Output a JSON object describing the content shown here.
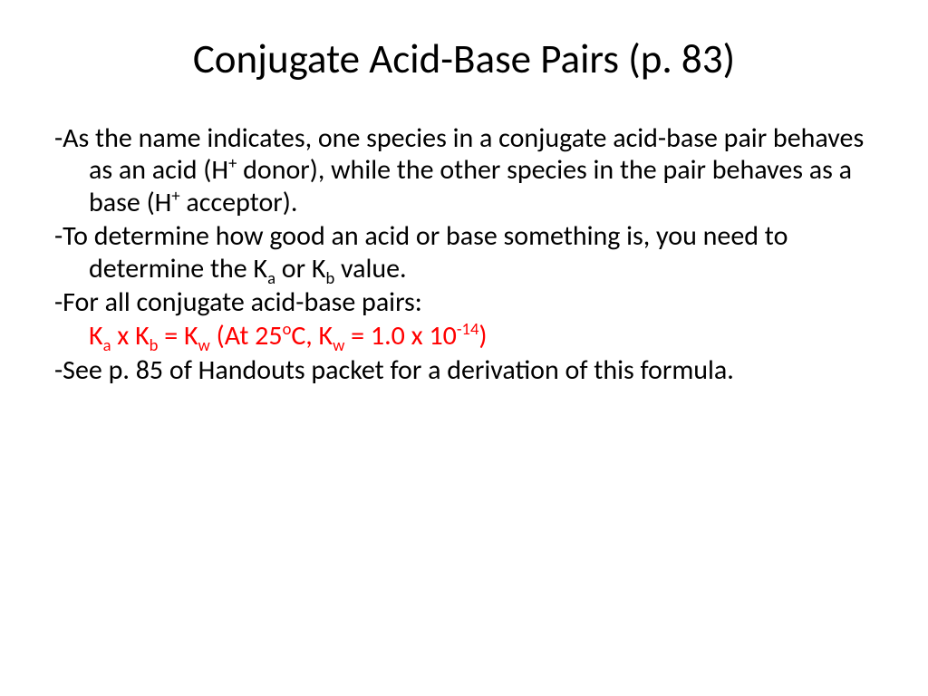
{
  "slide": {
    "title": "Conjugate Acid-Base Pairs (p. 83)",
    "background_color": "#ffffff",
    "title_color": "#000000",
    "title_fontsize": 45,
    "body_color": "#000000",
    "body_fontsize": 30,
    "highlight_color": "#ff0000",
    "font_family": "Calibri",
    "paragraphs": [
      {
        "type": "bullet",
        "segments": [
          {
            "t": "-As the name indicates, one species in a conjugate acid-base pair behaves as an acid (H"
          },
          {
            "t": "+",
            "sup": true
          },
          {
            "t": " donor), while the other species in the pair behaves as a base (H"
          },
          {
            "t": "+",
            "sup": true
          },
          {
            "t": " acceptor)."
          }
        ]
      },
      {
        "type": "bullet",
        "segments": [
          {
            "t": "-To determine how good an acid or base something is, you need to determine the K"
          },
          {
            "t": "a",
            "sub": true
          },
          {
            "t": " or K"
          },
          {
            "t": "b",
            "sub": true
          },
          {
            "t": " value."
          }
        ]
      },
      {
        "type": "bullet",
        "segments": [
          {
            "t": "-For all conjugate acid-base pairs:"
          }
        ]
      },
      {
        "type": "formula",
        "color": "#ff0000",
        "segments": [
          {
            "t": "K"
          },
          {
            "t": "a",
            "sub": true
          },
          {
            "t": " x K"
          },
          {
            "t": "b",
            "sub": true
          },
          {
            "t": " = K"
          },
          {
            "t": "w",
            "sub": true
          },
          {
            "t": "   (At 25"
          },
          {
            "t": "o",
            "sup": true
          },
          {
            "t": "C, K"
          },
          {
            "t": "w",
            "sub": true
          },
          {
            "t": " = 1.0 x 10"
          },
          {
            "t": "-14",
            "sup": true
          },
          {
            "t": ")"
          }
        ]
      },
      {
        "type": "bullet",
        "segments": [
          {
            "t": "-See p. 85 of Handouts packet for a derivation of this formula."
          }
        ]
      }
    ]
  }
}
